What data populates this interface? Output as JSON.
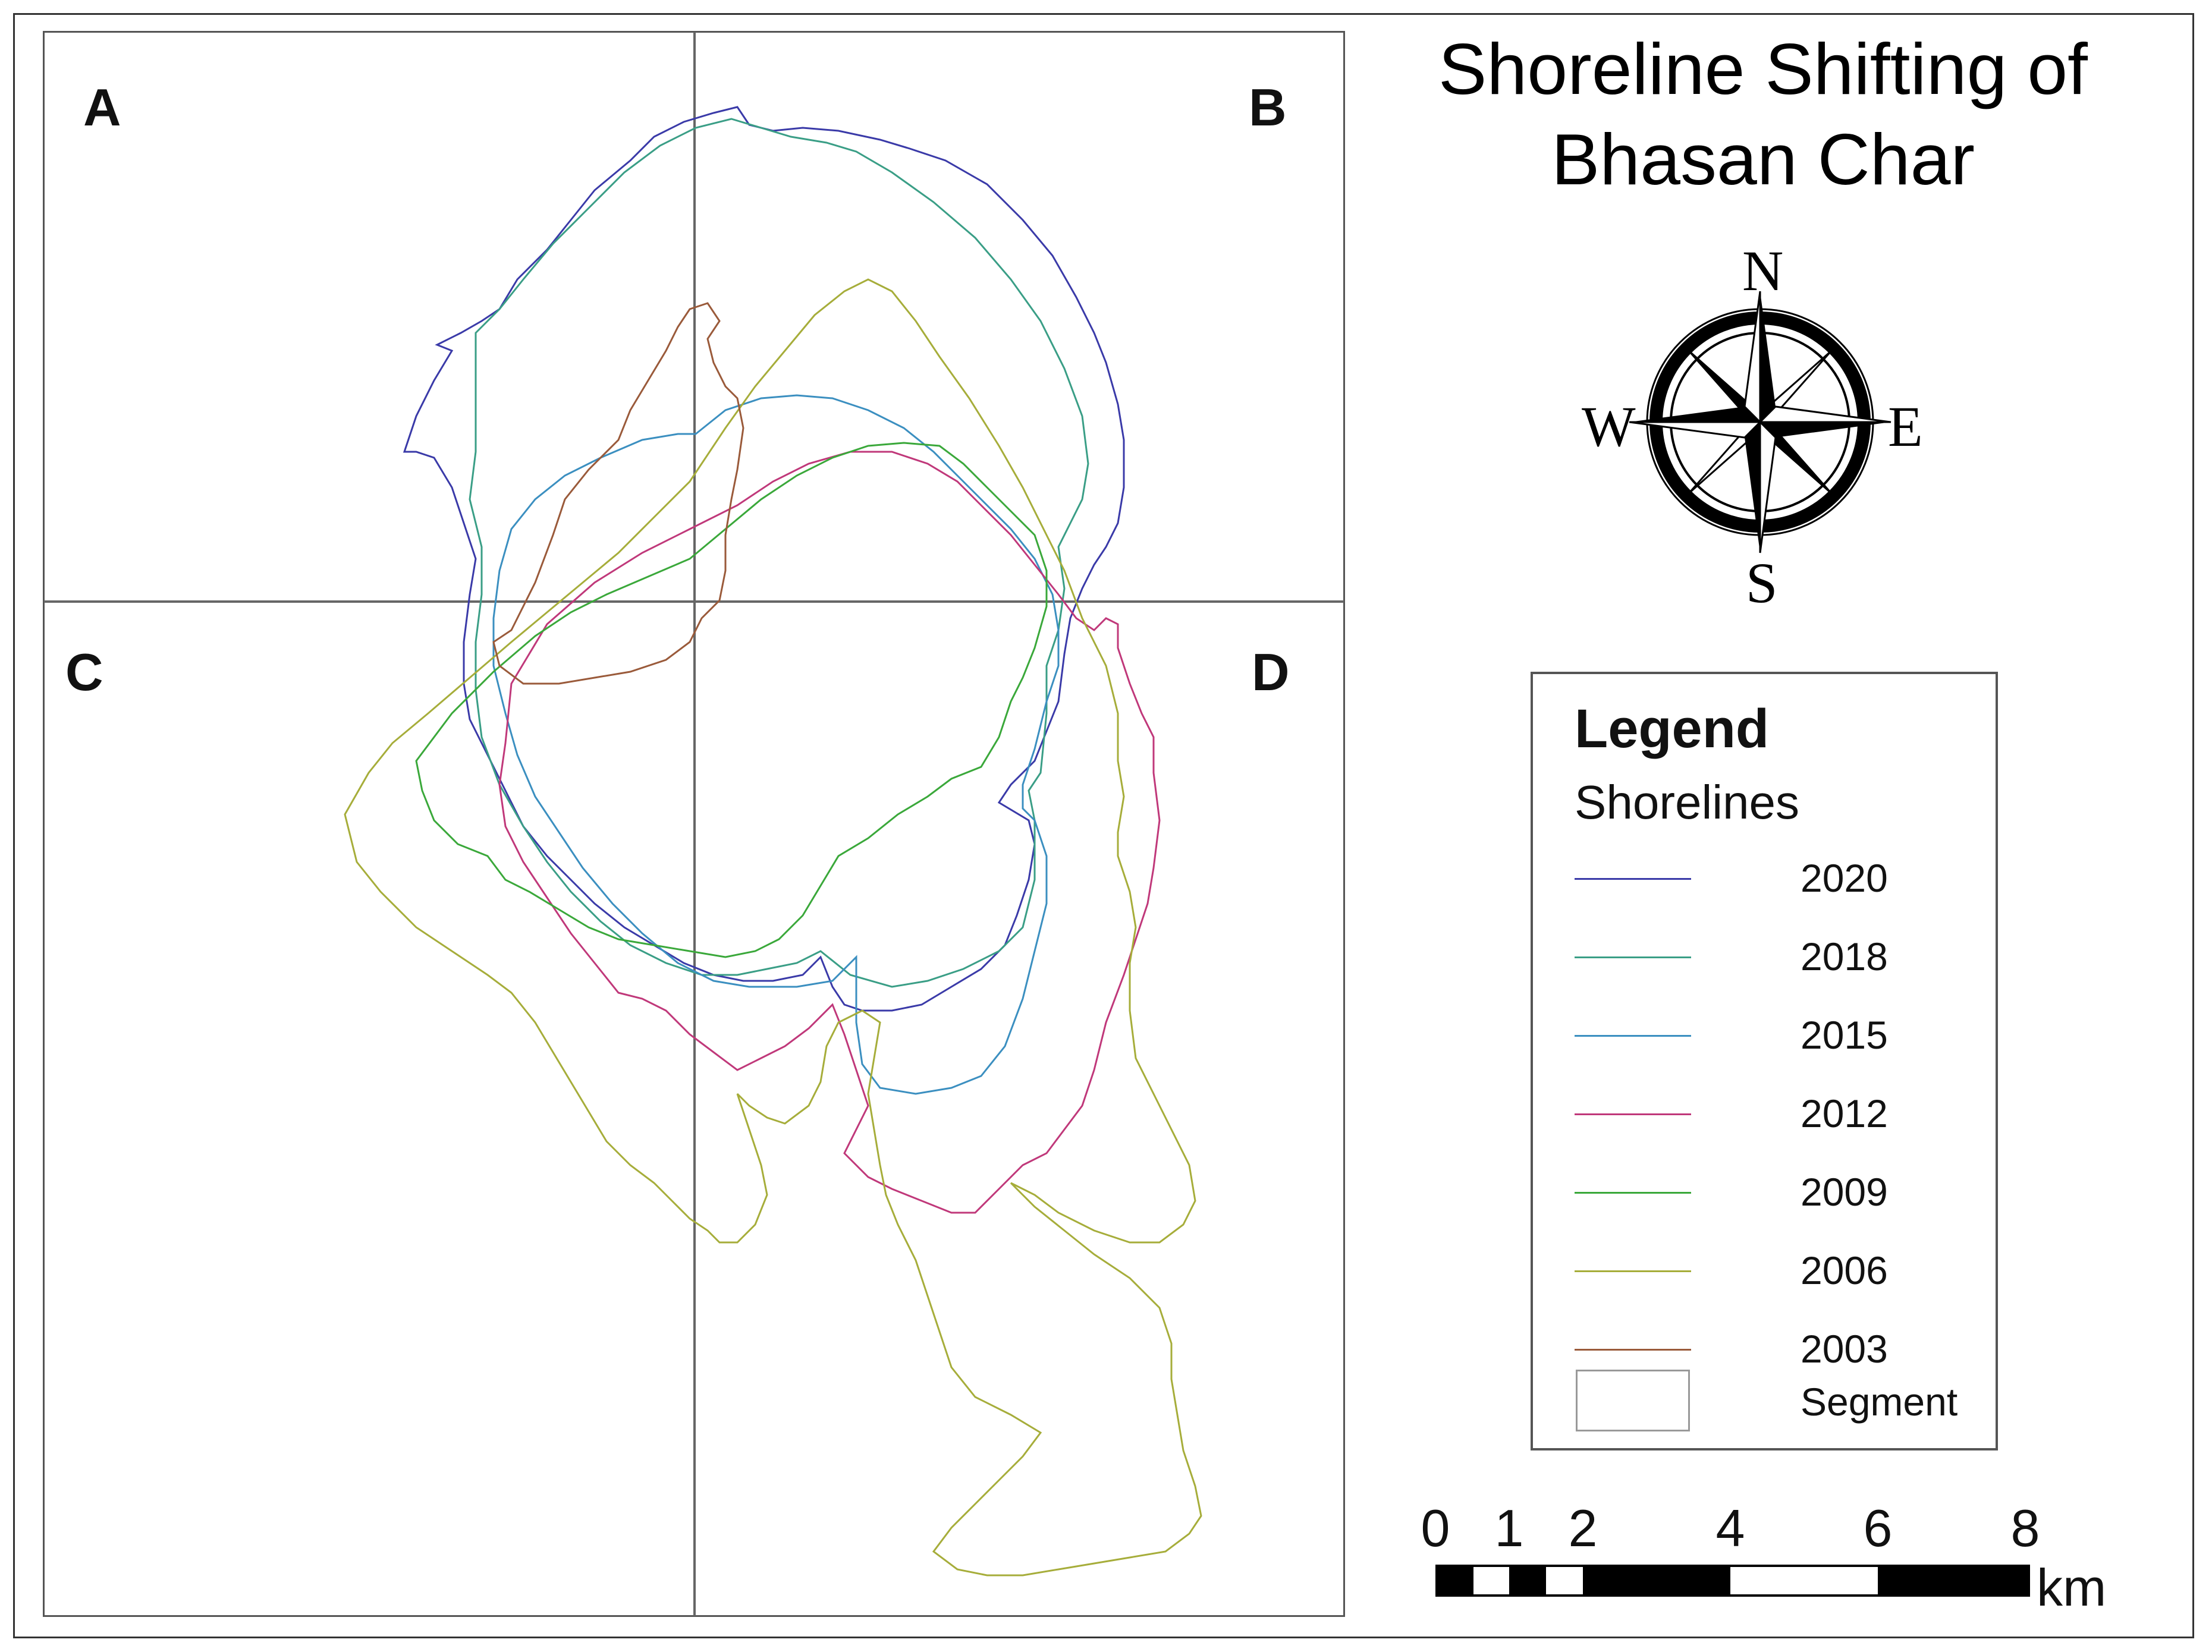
{
  "title": {
    "line1": "Shoreline Shifting of",
    "line2": "Bhasan Char"
  },
  "segments": {
    "a": "A",
    "b": "B",
    "c": "C",
    "d": "D"
  },
  "compass": {
    "north": "N",
    "south": "S",
    "east": "E",
    "west": "W"
  },
  "legend": {
    "title": "Legend",
    "subtitle": "Shorelines",
    "items": [
      {
        "year": "2020",
        "color": "#3a3aa8"
      },
      {
        "year": "2018",
        "color": "#3a9e86"
      },
      {
        "year": "2015",
        "color": "#3b8fc0"
      },
      {
        "year": "2012",
        "color": "#c0387a"
      },
      {
        "year": "2009",
        "color": "#3aa83a"
      },
      {
        "year": "2006",
        "color": "#a6ad3a"
      },
      {
        "year": "2003",
        "color": "#9a5a3a"
      }
    ],
    "segment_label": "Segment"
  },
  "scale_bar": {
    "ticks": [
      "0",
      "1",
      "2",
      "4",
      "6",
      "8"
    ],
    "unit": "km"
  }
}
